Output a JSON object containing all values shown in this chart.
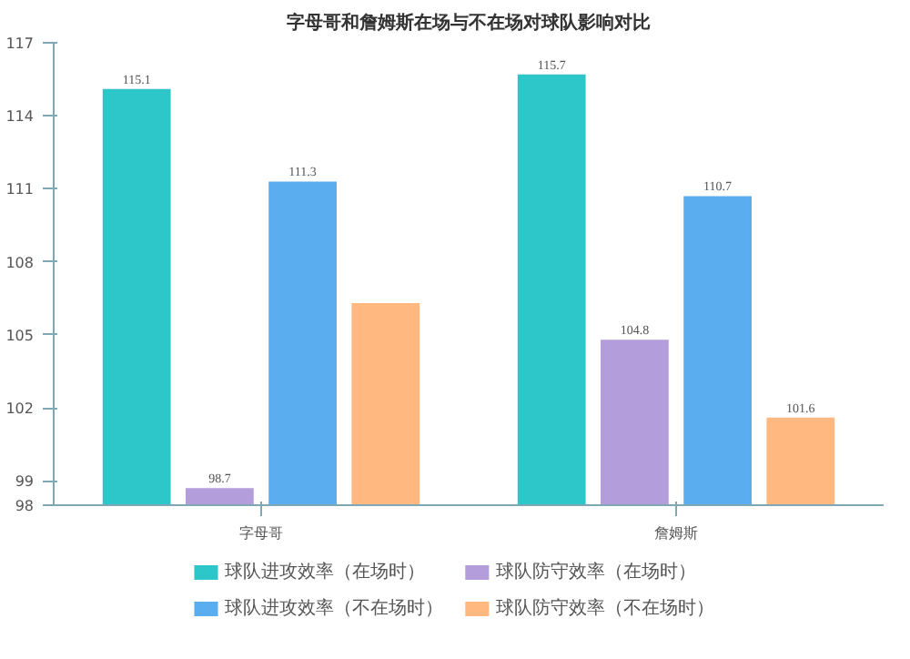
{
  "chart_data": {
    "type": "bar",
    "title": "字母哥和詹姆斯在场与不在场对球队影响对比",
    "categories": [
      "字母哥",
      "詹姆斯"
    ],
    "series": [
      {
        "name": "球队进攻效率（在场时）",
        "color": "#2ec7c9",
        "values": [
          115.1,
          115.7
        ],
        "value_labels": [
          "115.1",
          "115.7"
        ]
      },
      {
        "name": "球队防守效率（在场时）",
        "color": "#b39ddb",
        "values": [
          98.7,
          104.8
        ],
        "value_labels": [
          "98.7",
          "104.8"
        ]
      },
      {
        "name": "球队进攻效率（不在场时）",
        "color": "#5aaef0",
        "values": [
          111.3,
          110.7
        ],
        "value_labels": [
          "111.3",
          "110.7"
        ]
      },
      {
        "name": "球队防守效率（不在场时）",
        "color": "#ffb980",
        "values": [
          106.3,
          101.6
        ],
        "value_labels": [
          null,
          "101.6"
        ]
      }
    ],
    "ylim": [
      98,
      117
    ],
    "yticks": [
      98,
      99,
      102,
      105,
      108,
      111,
      114,
      117
    ],
    "grid": false,
    "legend": "bottom"
  }
}
